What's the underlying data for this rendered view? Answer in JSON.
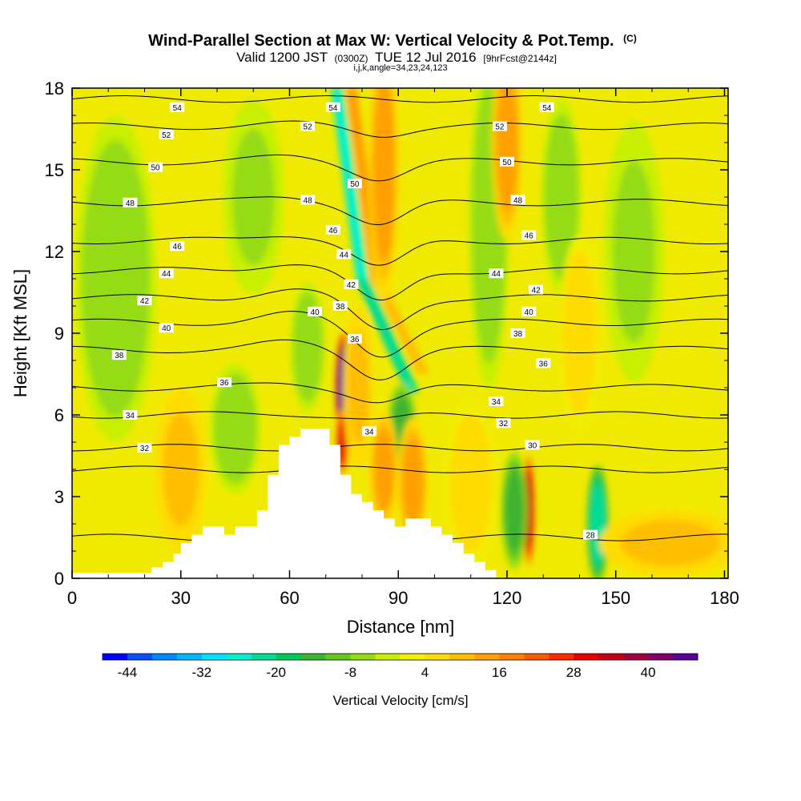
{
  "chart_data": {
    "type": "heatmap",
    "title": "Wind-Parallel Section at Max W: Vertical Velocity & Pot.Temp.",
    "title_suffix": "(C)",
    "subtitle_parts": [
      "Valid 1200 JST",
      "(0300Z)",
      "TUE 12 Jul 2016",
      "[9hrFcst@2144z]"
    ],
    "subtitle2": "i,j,k,angle=34,23,24,123",
    "xlabel": "Distance [nm]",
    "ylabel": "Height [Kft MSL]",
    "xlim": [
      0,
      181
    ],
    "ylim": [
      0,
      18
    ],
    "xticks": [
      0,
      30,
      60,
      90,
      120,
      150,
      180
    ],
    "yticks": [
      0,
      3,
      6,
      9,
      12,
      15,
      18
    ],
    "grid": false,
    "colorbar": {
      "label": "Vertical Velocity [cm/s]",
      "tick_labels": [
        "-44",
        "-32",
        "-20",
        "-8",
        "4",
        "16",
        "28",
        "40"
      ],
      "tick_values": [
        -44,
        -32,
        -20,
        -8,
        4,
        16,
        28,
        40
      ],
      "range": [
        -48,
        48
      ],
      "colors": [
        "#0000ff",
        "#0a4dff",
        "#0088ff",
        "#00b8ff",
        "#00e0ff",
        "#00f0d0",
        "#00dc96",
        "#00c85a",
        "#3cb432",
        "#64c81e",
        "#96dc14",
        "#c8f000",
        "#f0f000",
        "#ffdc00",
        "#ffbe00",
        "#ffa000",
        "#ff8200",
        "#ff5a00",
        "#ff2800",
        "#e60000",
        "#c80014",
        "#a0003c",
        "#82006e",
        "#5a0096"
      ]
    },
    "terrain": [
      [
        0,
        0.2
      ],
      [
        22,
        0.2
      ],
      [
        22,
        0.4
      ],
      [
        25,
        0.4
      ],
      [
        25,
        0.6
      ],
      [
        28,
        0.6
      ],
      [
        28,
        0.9
      ],
      [
        30,
        0.9
      ],
      [
        30,
        1.3
      ],
      [
        33,
        1.3
      ],
      [
        33,
        1.6
      ],
      [
        36,
        1.6
      ],
      [
        36,
        1.9
      ],
      [
        42,
        1.9
      ],
      [
        42,
        1.6
      ],
      [
        45,
        1.6
      ],
      [
        45,
        1.9
      ],
      [
        51,
        1.9
      ],
      [
        51,
        2.5
      ],
      [
        54,
        2.5
      ],
      [
        54,
        3.8
      ],
      [
        57,
        3.8
      ],
      [
        57,
        4.9
      ],
      [
        60,
        4.9
      ],
      [
        60,
        5.2
      ],
      [
        63,
        5.2
      ],
      [
        63,
        5.5
      ],
      [
        71,
        5.5
      ],
      [
        71,
        4.9
      ],
      [
        74,
        4.9
      ],
      [
        74,
        3.8
      ],
      [
        77,
        3.8
      ],
      [
        77,
        3.1
      ],
      [
        80,
        3.1
      ],
      [
        80,
        2.8
      ],
      [
        83,
        2.8
      ],
      [
        83,
        2.5
      ],
      [
        86,
        2.5
      ],
      [
        86,
        2.2
      ],
      [
        89,
        2.2
      ],
      [
        89,
        1.9
      ],
      [
        92,
        1.9
      ],
      [
        92,
        2.2
      ],
      [
        99,
        2.2
      ],
      [
        99,
        1.9
      ],
      [
        102,
        1.9
      ],
      [
        102,
        1.6
      ],
      [
        105,
        1.6
      ],
      [
        105,
        1.3
      ],
      [
        108,
        1.3
      ],
      [
        108,
        0.9
      ],
      [
        111,
        0.9
      ],
      [
        111,
        0.6
      ],
      [
        114,
        0.6
      ],
      [
        114,
        0.3
      ],
      [
        117,
        0.3
      ],
      [
        117,
        0
      ],
      [
        181,
        0
      ]
    ],
    "features": [
      {
        "kind": "w",
        "x": 75,
        "y": 7.0,
        "sx": 1.7,
        "sy": 1.7,
        "value": 48
      },
      {
        "kind": "w",
        "x": 74.5,
        "y": 5.0,
        "sx": 1.2,
        "sy": 1.0,
        "value": 28
      },
      {
        "kind": "w",
        "x": 126,
        "y": 2.5,
        "sx": 1.2,
        "sy": 1.7,
        "value": 34
      },
      {
        "kind": "w",
        "x": 122,
        "y": 2.5,
        "sx": 2.6,
        "sy": 1.8,
        "value": -16
      },
      {
        "kind": "w",
        "x": 145,
        "y": 2.0,
        "sx": 2.2,
        "sy": 1.8,
        "value": -22
      },
      {
        "kind": "w",
        "x": 91,
        "y": 5.5,
        "sx": 2.8,
        "sy": 1.4,
        "value": -16
      },
      {
        "kind": "w",
        "x": 86,
        "y": 4.0,
        "sx": 2.8,
        "sy": 1.8,
        "value": 12
      },
      {
        "kind": "w",
        "x": 94,
        "y": 3.5,
        "sx": 3.0,
        "sy": 2.0,
        "value": 14
      },
      {
        "kind": "w",
        "x": 79,
        "y": 7.0,
        "sx": 3.0,
        "sy": 2.5,
        "value": 10
      },
      {
        "kind": "w",
        "x": 30,
        "y": 4.0,
        "sx": 5.0,
        "sy": 2.5,
        "value": 10
      },
      {
        "kind": "w",
        "x": 45,
        "y": 5.5,
        "sx": 5.0,
        "sy": 2.0,
        "value": -8
      },
      {
        "kind": "w",
        "x": 165,
        "y": 1.3,
        "sx": 14.0,
        "sy": 1.0,
        "value": 9
      },
      {
        "kind": "w",
        "x": 110,
        "y": 3.5,
        "sx": 5.0,
        "sy": 2.5,
        "value": 7
      },
      {
        "kind": "w",
        "x": 65,
        "y": 8.5,
        "sx": 3.5,
        "sy": 2.0,
        "value": -6
      },
      {
        "kind": "w",
        "x": 50,
        "y": 14.0,
        "sx": 6.0,
        "sy": 3.0,
        "value": -5
      },
      {
        "kind": "w",
        "x": 115,
        "y": 13.0,
        "sx": 4.0,
        "sy": 5.0,
        "value": -8
      },
      {
        "kind": "w",
        "x": 135,
        "y": 14.0,
        "sx": 4.0,
        "sy": 3.0,
        "value": -7
      },
      {
        "kind": "w",
        "x": 155,
        "y": 12.0,
        "sx": 6.0,
        "sy": 4.0,
        "value": -5
      },
      {
        "kind": "w",
        "x": 12,
        "y": 11.0,
        "sx": 8.0,
        "sy": 5.0,
        "value": -6
      },
      {
        "kind": "w",
        "x": 86,
        "y": 15.0,
        "sx": 3.0,
        "sy": 4.0,
        "value": 14
      },
      {
        "kind": "w",
        "x": 120,
        "y": 16.0,
        "sx": 3.0,
        "sy": 3.0,
        "value": 12
      },
      {
        "kind": "w",
        "x": 140,
        "y": 9.0,
        "sx": 4.0,
        "sy": 3.0,
        "value": 6
      }
    ],
    "bands": [
      {
        "x0": 73,
        "y0": 18,
        "x1": 80,
        "y1": 11,
        "width": 1.6,
        "value": -26
      },
      {
        "x0": 80,
        "y0": 11,
        "x1": 94,
        "y1": 6.8,
        "width": 1.8,
        "value": -22
      },
      {
        "x0": 77,
        "y0": 18,
        "x1": 84,
        "y1": 11,
        "width": 1.6,
        "value": 14
      },
      {
        "x0": 84,
        "y0": 11,
        "x1": 97,
        "y1": 7.5,
        "width": 1.6,
        "value": 8
      }
    ],
    "theta_lines": [
      {
        "label": "54",
        "y": 17.6,
        "dip": 0
      },
      {
        "label": "52",
        "y": 16.6,
        "dip": 0.3
      },
      {
        "label": "50",
        "y": 15.3,
        "dip": 0.6
      },
      {
        "label": "48",
        "y": 13.8,
        "dip": 0.8
      },
      {
        "label": "46",
        "y": 12.4,
        "dip": 1.0
      },
      {
        "label": "44",
        "y": 11.3,
        "dip": 1.2
      },
      {
        "label": "42",
        "y": 10.3,
        "dip": 1.2
      },
      {
        "label": "40",
        "y": 9.4,
        "dip": 1.2
      },
      {
        "label": "38",
        "y": 8.4,
        "dip": 1.0
      },
      {
        "label": "36",
        "y": 7.0,
        "dip": 0.5
      },
      {
        "label": "34",
        "y": 6.0,
        "dip": 0.2
      },
      {
        "label": "32",
        "y": 4.8,
        "dip": 0
      },
      {
        "label": "30",
        "y": 4.0,
        "dip": 0
      },
      {
        "label": "28",
        "y": 1.5,
        "dip": 0
      }
    ],
    "contour_labels": [
      {
        "text": "54",
        "x": 29,
        "y": 17.3
      },
      {
        "text": "54",
        "x": 72,
        "y": 17.3
      },
      {
        "text": "54",
        "x": 131,
        "y": 17.3
      },
      {
        "text": "52",
        "x": 26,
        "y": 16.3
      },
      {
        "text": "52",
        "x": 65,
        "y": 16.6
      },
      {
        "text": "52",
        "x": 118,
        "y": 16.6
      },
      {
        "text": "50",
        "x": 23,
        "y": 15.1
      },
      {
        "text": "50",
        "x": 78,
        "y": 14.5
      },
      {
        "text": "50",
        "x": 120,
        "y": 15.3
      },
      {
        "text": "48",
        "x": 16,
        "y": 13.8
      },
      {
        "text": "48",
        "x": 65,
        "y": 13.9
      },
      {
        "text": "48",
        "x": 123,
        "y": 13.9
      },
      {
        "text": "46",
        "x": 29,
        "y": 12.2
      },
      {
        "text": "46",
        "x": 72,
        "y": 12.8
      },
      {
        "text": "46",
        "x": 126,
        "y": 12.6
      },
      {
        "text": "44",
        "x": 26,
        "y": 11.2
      },
      {
        "text": "44",
        "x": 75,
        "y": 11.9
      },
      {
        "text": "44",
        "x": 117,
        "y": 11.2
      },
      {
        "text": "42",
        "x": 20,
        "y": 10.2
      },
      {
        "text": "42",
        "x": 77,
        "y": 10.8
      },
      {
        "text": "42",
        "x": 128,
        "y": 10.6
      },
      {
        "text": "40",
        "x": 26,
        "y": 9.2
      },
      {
        "text": "40",
        "x": 67,
        "y": 9.8
      },
      {
        "text": "40",
        "x": 126,
        "y": 9.8
      },
      {
        "text": "38",
        "x": 13,
        "y": 8.2
      },
      {
        "text": "38",
        "x": 74,
        "y": 10.0
      },
      {
        "text": "38",
        "x": 123,
        "y": 9.0
      },
      {
        "text": "36",
        "x": 42,
        "y": 7.2
      },
      {
        "text": "36",
        "x": 78,
        "y": 8.8
      },
      {
        "text": "36",
        "x": 130,
        "y": 7.9
      },
      {
        "text": "34",
        "x": 16,
        "y": 6.0
      },
      {
        "text": "34",
        "x": 82,
        "y": 5.4
      },
      {
        "text": "34",
        "x": 117,
        "y": 6.5
      },
      {
        "text": "32",
        "x": 20,
        "y": 4.8
      },
      {
        "text": "32",
        "x": 119,
        "y": 5.7
      },
      {
        "text": "30",
        "x": 127,
        "y": 4.9
      },
      {
        "text": "28",
        "x": 143,
        "y": 1.6
      }
    ]
  }
}
